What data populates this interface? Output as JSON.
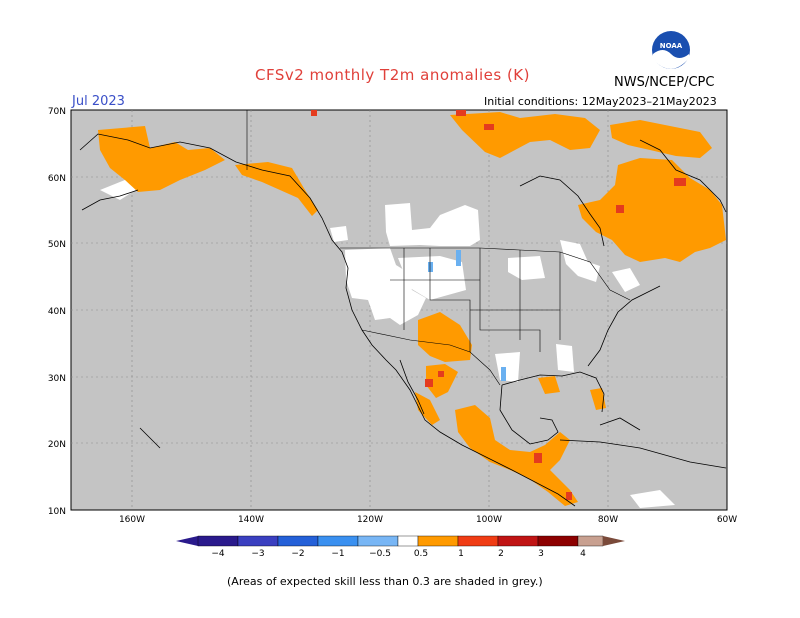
{
  "title": "CFSv2 monthly T2m anomalies (K)",
  "organization": "NWS/NCEP/CPC",
  "logo_text": "NOAA",
  "month": "Jul 2023",
  "initial_conditions": "Initial conditions: 12May2023–21May2023",
  "footnote": "(Areas of expected skill less than 0.3 are shaded in grey.)",
  "lat_labels": [
    "70N",
    "60N",
    "50N",
    "40N",
    "30N",
    "20N",
    "10N"
  ],
  "lon_labels": [
    "160W",
    "140W",
    "120W",
    "100W",
    "80W",
    "60W"
  ],
  "colorbar": {
    "ticks": [
      "−4",
      "−3",
      "−2",
      "−1",
      "−0.5",
      "0.5",
      "1",
      "2",
      "3",
      "4"
    ],
    "colors": [
      "#2a1a8c",
      "#3a3fc0",
      "#2460d8",
      "#3a90f0",
      "#78b6f5",
      "#ffffff",
      "#ff9a00",
      "#f03c14",
      "#c01414",
      "#8c0000",
      "#c8a090",
      "#7a4a3a"
    ]
  },
  "colors": {
    "skill_mask": "#c4c4c4",
    "warm": "#ff9a00",
    "hot": "#e43b1e",
    "cool": "#6ab0f0",
    "neutral": "#ffffff"
  }
}
